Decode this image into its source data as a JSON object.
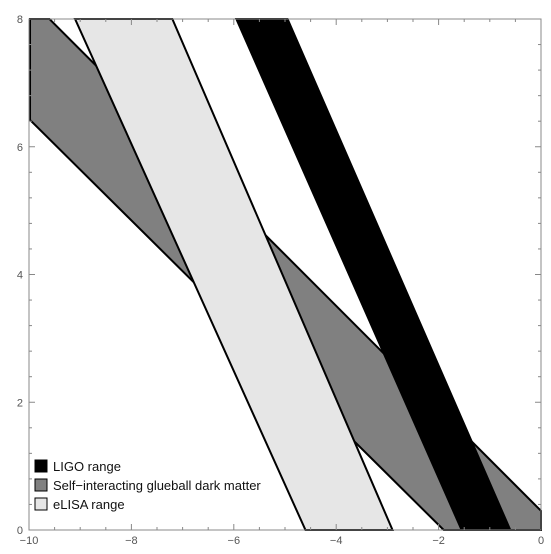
{
  "chart_data": {
    "type": "area",
    "title": "",
    "xlabel": "",
    "ylabel": "",
    "xlim": [
      -10,
      0
    ],
    "ylim": [
      0,
      8
    ],
    "x_ticks": [
      -10,
      -8,
      -6,
      -4,
      -2,
      0
    ],
    "x_tick_labels": [
      "−10",
      "−8",
      "−6",
      "−4",
      "−2",
      "0"
    ],
    "y_ticks": [
      0,
      2,
      4,
      6,
      8
    ],
    "y_tick_labels": [
      "0",
      "2",
      "4",
      "6",
      "8"
    ],
    "grid": false,
    "legend_position": "bottom-left",
    "series": [
      {
        "name": "Self−interacting glueball dark matter",
        "color": "#808080",
        "polygon": [
          [
            -9.98,
            8.0
          ],
          [
            -9.6,
            8.0
          ],
          [
            0.0,
            0.3
          ],
          [
            0.0,
            0.0
          ],
          [
            -1.9,
            0.0
          ],
          [
            -9.98,
            6.42
          ]
        ]
      },
      {
        "name": "eLISA range",
        "color": "#e6e6e6",
        "polygon": [
          [
            -9.1,
            8.0
          ],
          [
            -7.2,
            8.0
          ],
          [
            -2.9,
            0.0
          ],
          [
            -4.6,
            0.0
          ]
        ]
      },
      {
        "name": "LIGO range",
        "color": "#000000",
        "polygon": [
          [
            -5.95,
            8.0
          ],
          [
            -4.95,
            8.0
          ],
          [
            -0.6,
            0.0
          ],
          [
            -1.55,
            0.0
          ]
        ]
      }
    ],
    "legend_order": [
      "LIGO range",
      "Self−interacting glueball dark matter",
      "eLISA range"
    ]
  }
}
